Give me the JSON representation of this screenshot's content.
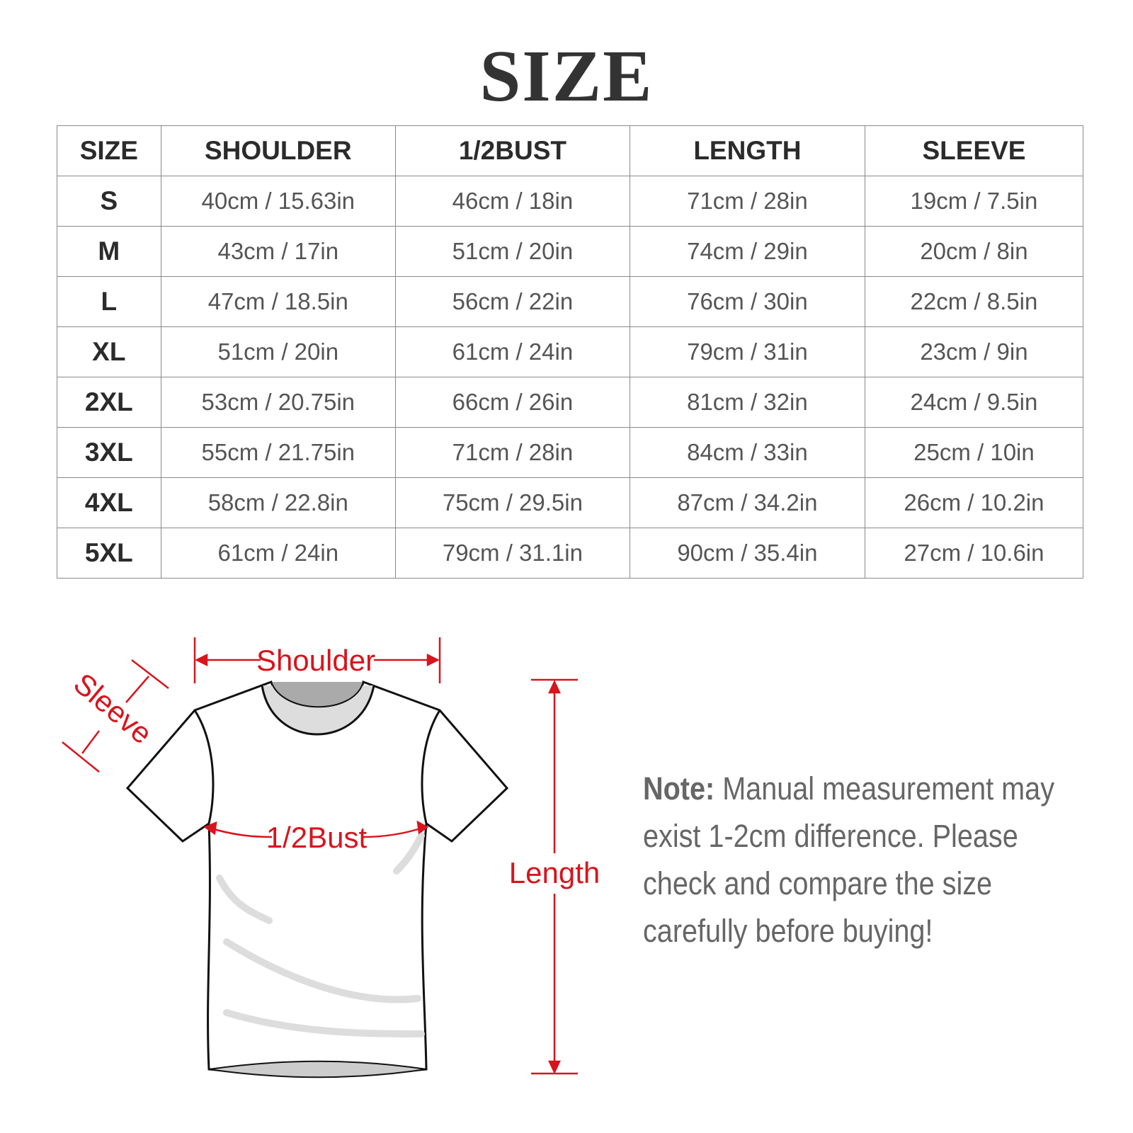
{
  "title": "SIZE",
  "table": {
    "headers": [
      "SIZE",
      "SHOULDER",
      "1/2BUST",
      "LENGTH",
      "SLEEVE"
    ],
    "rows": [
      [
        "S",
        "40cm / 15.63in",
        "46cm / 18in",
        "71cm / 28in",
        "19cm / 7.5in"
      ],
      [
        "M",
        "43cm / 17in",
        "51cm / 20in",
        "74cm / 29in",
        "20cm / 8in"
      ],
      [
        "L",
        "47cm / 18.5in",
        "56cm / 22in",
        "76cm / 30in",
        "22cm / 8.5in"
      ],
      [
        "XL",
        "51cm / 20in",
        "61cm / 24in",
        "79cm / 31in",
        "23cm / 9in"
      ],
      [
        "2XL",
        "53cm / 20.75in",
        "66cm / 26in",
        "81cm / 32in",
        "24cm / 9.5in"
      ],
      [
        "3XL",
        "55cm / 21.75in",
        "71cm / 28in",
        "84cm / 33in",
        "25cm / 10in"
      ],
      [
        "4XL",
        "58cm / 22.8in",
        "75cm / 29.5in",
        "87cm / 34.2in",
        "26cm / 10.2in"
      ],
      [
        "5XL",
        "61cm / 24in",
        "79cm / 31.1in",
        "90cm / 35.4in",
        "27cm / 10.6in"
      ]
    ]
  },
  "diagram": {
    "labels": {
      "shoulder": "Shoulder",
      "sleeve": "Sleeve",
      "bust": "1/2Bust",
      "length": "Length"
    },
    "accent_color": "#d8141c"
  },
  "note": {
    "label": "Note:",
    "text": " Manual measurement may exist 1-2cm difference. Please check and compare the size carefully before buying!"
  }
}
